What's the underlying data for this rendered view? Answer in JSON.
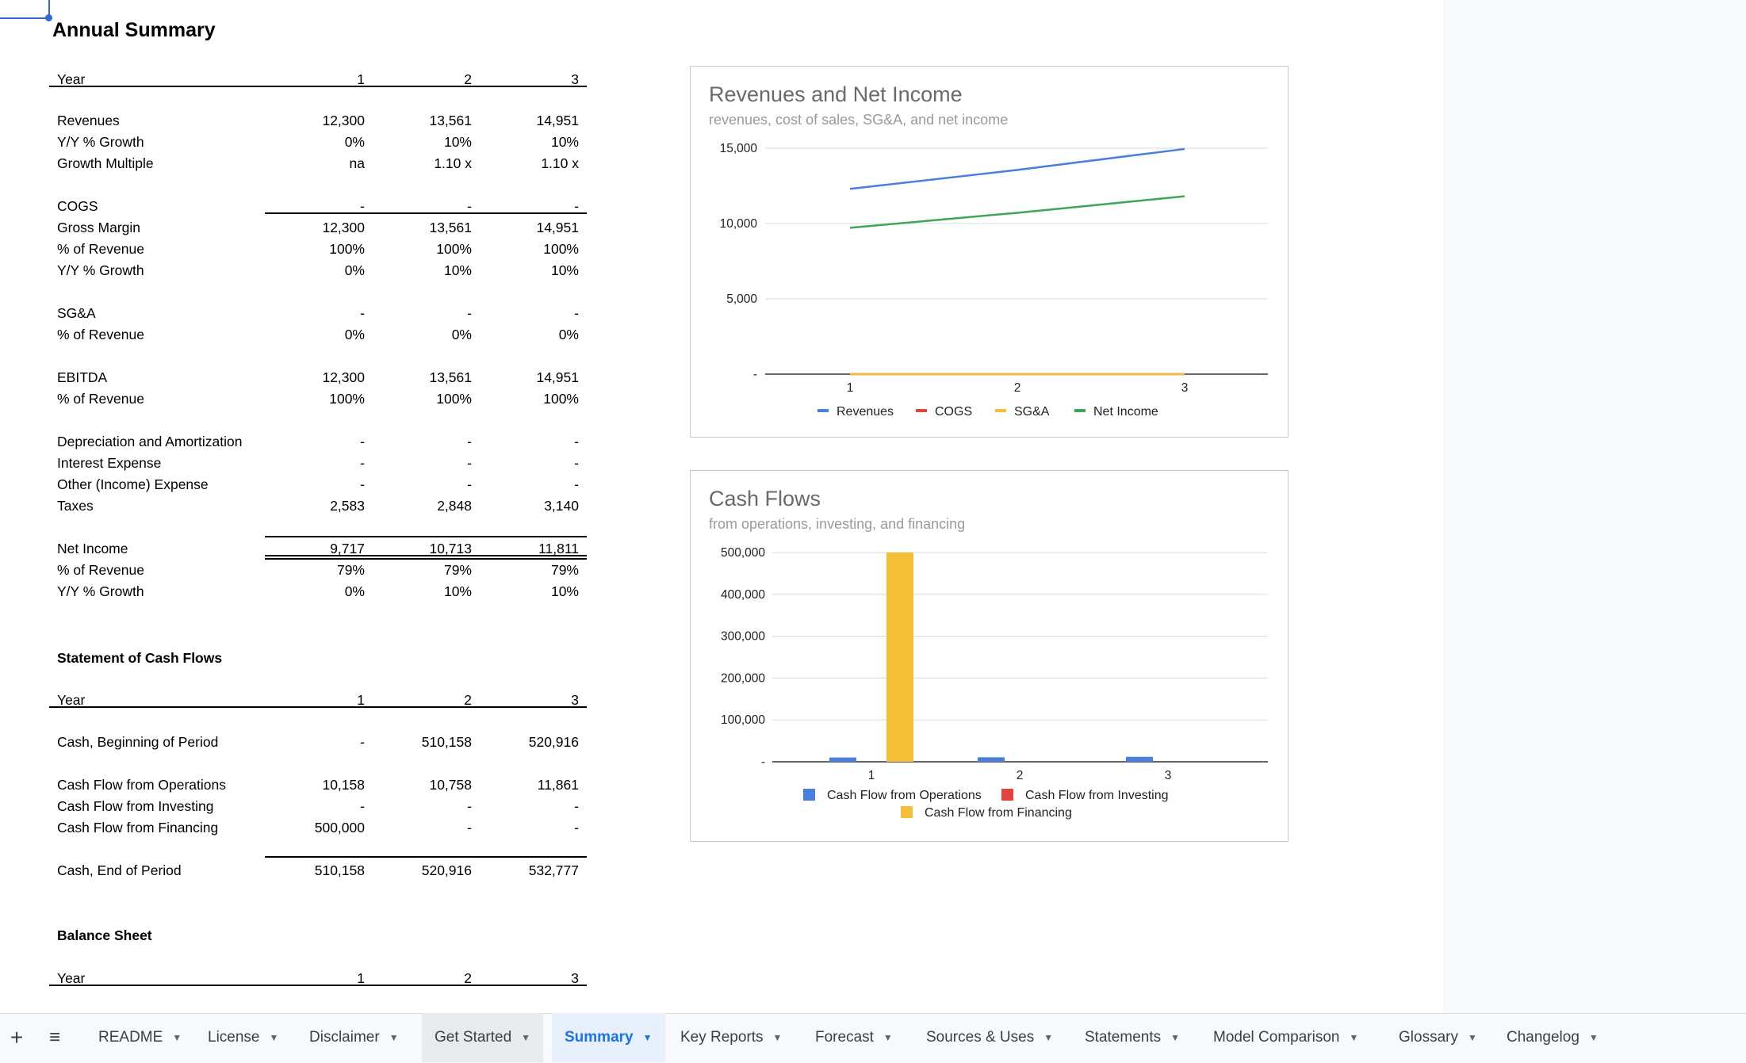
{
  "sheet": {
    "title": "Annual Summary",
    "income_header": {
      "label": "Year",
      "cols": [
        "1",
        "2",
        "3"
      ]
    },
    "income_rows": [
      {
        "label": "Revenues",
        "v": [
          "12,300",
          "13,561",
          "14,951"
        ]
      },
      {
        "label": "Y/Y % Growth",
        "v": [
          "0%",
          "10%",
          "10%"
        ]
      },
      {
        "label": "Growth Multiple",
        "v": [
          "na",
          "1.10 x",
          "1.10 x"
        ]
      },
      {
        "label": "COGS",
        "v": [
          "-",
          "-",
          "-"
        ]
      },
      {
        "label": "Gross Margin",
        "v": [
          "12,300",
          "13,561",
          "14,951"
        ]
      },
      {
        "label": "% of Revenue",
        "v": [
          "100%",
          "100%",
          "100%"
        ]
      },
      {
        "label": "Y/Y % Growth",
        "v": [
          "0%",
          "10%",
          "10%"
        ]
      },
      {
        "label": "SG&A",
        "v": [
          "-",
          "-",
          "-"
        ]
      },
      {
        "label": "% of Revenue",
        "v": [
          "0%",
          "0%",
          "0%"
        ]
      },
      {
        "label": "EBITDA",
        "v": [
          "12,300",
          "13,561",
          "14,951"
        ]
      },
      {
        "label": "% of Revenue",
        "v": [
          "100%",
          "100%",
          "100%"
        ]
      },
      {
        "label": "Depreciation and Amortization",
        "v": [
          "-",
          "-",
          "-"
        ]
      },
      {
        "label": "Interest Expense",
        "v": [
          "-",
          "-",
          "-"
        ]
      },
      {
        "label": "Other (Income) Expense",
        "v": [
          "-",
          "-",
          "-"
        ]
      },
      {
        "label": "Taxes",
        "v": [
          "2,583",
          "2,848",
          "3,140"
        ]
      },
      {
        "label": "Net Income",
        "v": [
          "9,717",
          "10,713",
          "11,811"
        ]
      },
      {
        "label": "% of Revenue",
        "v": [
          "79%",
          "79%",
          "79%"
        ]
      },
      {
        "label": "Y/Y % Growth",
        "v": [
          "0%",
          "10%",
          "10%"
        ]
      }
    ],
    "cash_title": "Statement of Cash Flows",
    "cash_header": {
      "label": "Year",
      "cols": [
        "1",
        "2",
        "3"
      ]
    },
    "cash_rows": [
      {
        "label": "Cash, Beginning of Period",
        "v": [
          "-",
          "510,158",
          "520,916"
        ]
      },
      {
        "label": "Cash Flow from Operations",
        "v": [
          "10,158",
          "10,758",
          "11,861"
        ]
      },
      {
        "label": "Cash Flow from Investing",
        "v": [
          "-",
          "-",
          "-"
        ]
      },
      {
        "label": "Cash Flow from Financing",
        "v": [
          "500,000",
          "-",
          "-"
        ]
      },
      {
        "label": "Cash, End of Period",
        "v": [
          "510,158",
          "520,916",
          "532,777"
        ]
      }
    ],
    "balance_title": "Balance Sheet",
    "balance_header": {
      "label": "Year",
      "cols": [
        "1",
        "2",
        "3"
      ]
    }
  },
  "chart_data": [
    {
      "type": "line",
      "title": "Revenues and Net Income",
      "subtitle": "revenues, cost of sales, SG&A, and net income",
      "x": [
        "1",
        "2",
        "3"
      ],
      "ylim": [
        0,
        15000
      ],
      "yticks": [
        "15,000",
        "10,000",
        "5,000",
        "-"
      ],
      "series": [
        {
          "name": "Revenues",
          "color": "#4a7fe0",
          "values": [
            12300,
            13561,
            14951
          ]
        },
        {
          "name": "COGS",
          "color": "#e0453a",
          "values": [
            0,
            0,
            0
          ]
        },
        {
          "name": "SG&A",
          "color": "#f4bf37",
          "values": [
            0,
            0,
            0
          ]
        },
        {
          "name": "Net Income",
          "color": "#3ea55a",
          "values": [
            9717,
            10713,
            11811
          ]
        }
      ],
      "legend": "bottom",
      "grid": true
    },
    {
      "type": "bar",
      "title": "Cash Flows",
      "subtitle": "from operations, investing, and financing",
      "categories": [
        "1",
        "2",
        "3"
      ],
      "ylim": [
        0,
        500000
      ],
      "yticks": [
        "500,000",
        "400,000",
        "300,000",
        "200,000",
        "100,000",
        "-"
      ],
      "series": [
        {
          "name": "Cash Flow from Operations",
          "color": "#4a7fe0",
          "values": [
            10158,
            10758,
            11861
          ]
        },
        {
          "name": "Cash Flow from Investing",
          "color": "#e0453a",
          "values": [
            0,
            0,
            0
          ]
        },
        {
          "name": "Cash Flow from Financing",
          "color": "#f4bf37",
          "values": [
            500000,
            0,
            0
          ]
        }
      ],
      "legend": "bottom",
      "grid": true
    }
  ],
  "tabs": {
    "add_icon": "plus-icon",
    "all_sheets_icon": "menu-icon",
    "items": [
      {
        "label": "README"
      },
      {
        "label": "License"
      },
      {
        "label": "Disclaimer"
      },
      {
        "label": "Get Started"
      },
      {
        "label": "Summary"
      },
      {
        "label": "Key Reports"
      },
      {
        "label": "Forecast"
      },
      {
        "label": "Sources & Uses"
      },
      {
        "label": "Statements"
      },
      {
        "label": "Model Comparison"
      },
      {
        "label": "Glossary"
      },
      {
        "label": "Changelog"
      }
    ],
    "active": "Summary"
  }
}
